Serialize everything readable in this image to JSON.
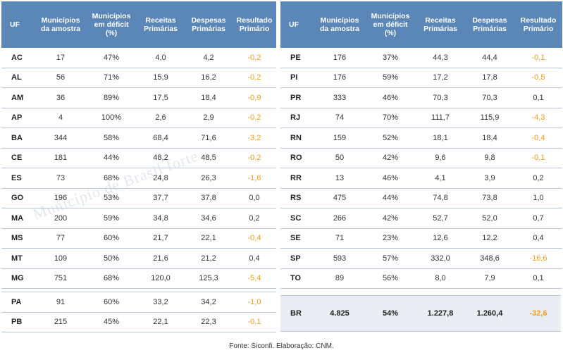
{
  "headers": {
    "uf": "UF",
    "municipios": [
      "Municípios",
      "da amostra"
    ],
    "deficit": [
      "Municípios",
      "em déficit",
      "(%)"
    ],
    "receitas": [
      "Receitas",
      "Primárias"
    ],
    "despesas": [
      "Despesas",
      "Primárias"
    ],
    "resultado": [
      "Resultado",
      "Primário"
    ]
  },
  "left_rows": [
    {
      "uf": "AC",
      "mun": "17",
      "def": "47%",
      "rec": "4,0",
      "desp": "4,2",
      "res": "-0,2"
    },
    {
      "uf": "AL",
      "mun": "56",
      "def": "71%",
      "rec": "15,9",
      "desp": "16,2",
      "res": "-0,2"
    },
    {
      "uf": "AM",
      "mun": "36",
      "def": "89%",
      "rec": "17,5",
      "desp": "18,4",
      "res": "-0,9"
    },
    {
      "uf": "AP",
      "mun": "4",
      "def": "100%",
      "rec": "2,6",
      "desp": "2,9",
      "res": "-0,2"
    },
    {
      "uf": "BA",
      "mun": "344",
      "def": "58%",
      "rec": "68,4",
      "desp": "71,6",
      "res": "-3,2"
    },
    {
      "uf": "CE",
      "mun": "181",
      "def": "44%",
      "rec": "48,2",
      "desp": "48,5",
      "res": "-0,2"
    },
    {
      "uf": "ES",
      "mun": "73",
      "def": "68%",
      "rec": "24,8",
      "desp": "26,3",
      "res": "-1,6"
    },
    {
      "uf": "GO",
      "mun": "196",
      "def": "53%",
      "rec": "37,7",
      "desp": "37,8",
      "res": "0,0"
    },
    {
      "uf": "MA",
      "mun": "200",
      "def": "59%",
      "rec": "34,8",
      "desp": "34,6",
      "res": "0,2"
    },
    {
      "uf": "MS",
      "mun": "77",
      "def": "60%",
      "rec": "21,7",
      "desp": "22,1",
      "res": "-0,4"
    },
    {
      "uf": "MT",
      "mun": "109",
      "def": "50%",
      "rec": "21,6",
      "desp": "21,2",
      "res": "0,4"
    },
    {
      "uf": "MG",
      "mun": "751",
      "def": "68%",
      "rec": "120,0",
      "desp": "125,3",
      "res": "-5,4"
    }
  ],
  "left_rows_after_gap": [
    {
      "uf": "PA",
      "mun": "91",
      "def": "60%",
      "rec": "33,2",
      "desp": "34,2",
      "res": "-1,0"
    },
    {
      "uf": "PB",
      "mun": "215",
      "def": "45%",
      "rec": "22,1",
      "desp": "22,3",
      "res": "-0,1"
    }
  ],
  "right_rows": [
    {
      "uf": "PE",
      "mun": "176",
      "def": "37%",
      "rec": "44,3",
      "desp": "44,4",
      "res": "-0,1"
    },
    {
      "uf": "PI",
      "mun": "176",
      "def": "59%",
      "rec": "17,2",
      "desp": "17,8",
      "res": "-0,5"
    },
    {
      "uf": "PR",
      "mun": "333",
      "def": "46%",
      "rec": "70,3",
      "desp": "70,3",
      "res": "0,1"
    },
    {
      "uf": "RJ",
      "mun": "74",
      "def": "70%",
      "rec": "111,7",
      "desp": "115,9",
      "res": "-4,3"
    },
    {
      "uf": "RN",
      "mun": "159",
      "def": "52%",
      "rec": "18,1",
      "desp": "18,4",
      "res": "-0,4"
    },
    {
      "uf": "RO",
      "mun": "50",
      "def": "42%",
      "rec": "9,6",
      "desp": "9,8",
      "res": "-0,1"
    },
    {
      "uf": "RR",
      "mun": "13",
      "def": "46%",
      "rec": "4,1",
      "desp": "3,9",
      "res": "0,2"
    },
    {
      "uf": "RS",
      "mun": "475",
      "def": "44%",
      "rec": "74,8",
      "desp": "73,8",
      "res": "1,0"
    },
    {
      "uf": "SC",
      "mun": "266",
      "def": "42%",
      "rec": "52,7",
      "desp": "52,0",
      "res": "0,7"
    },
    {
      "uf": "SE",
      "mun": "71",
      "def": "23%",
      "rec": "12,6",
      "desp": "12,2",
      "res": "0,4"
    },
    {
      "uf": "SP",
      "mun": "593",
      "def": "57%",
      "rec": "332,0",
      "desp": "348,6",
      "res": "-16,6"
    },
    {
      "uf": "TO",
      "mun": "89",
      "def": "56%",
      "rec": "8,0",
      "desp": "7,9",
      "res": "0,1"
    }
  ],
  "total": {
    "uf": "BR",
    "mun": "4.825",
    "def": "54%",
    "rec": "1.227,8",
    "desp": "1.260,4",
    "res": "-32,6"
  },
  "source": "Fonte: Siconfi. Elaboração: CNM.",
  "watermark": "Município de Brasil forte",
  "colors": {
    "header": "#5b86b8",
    "negative": "#f39c12",
    "total_bg": "#e9eef5"
  }
}
